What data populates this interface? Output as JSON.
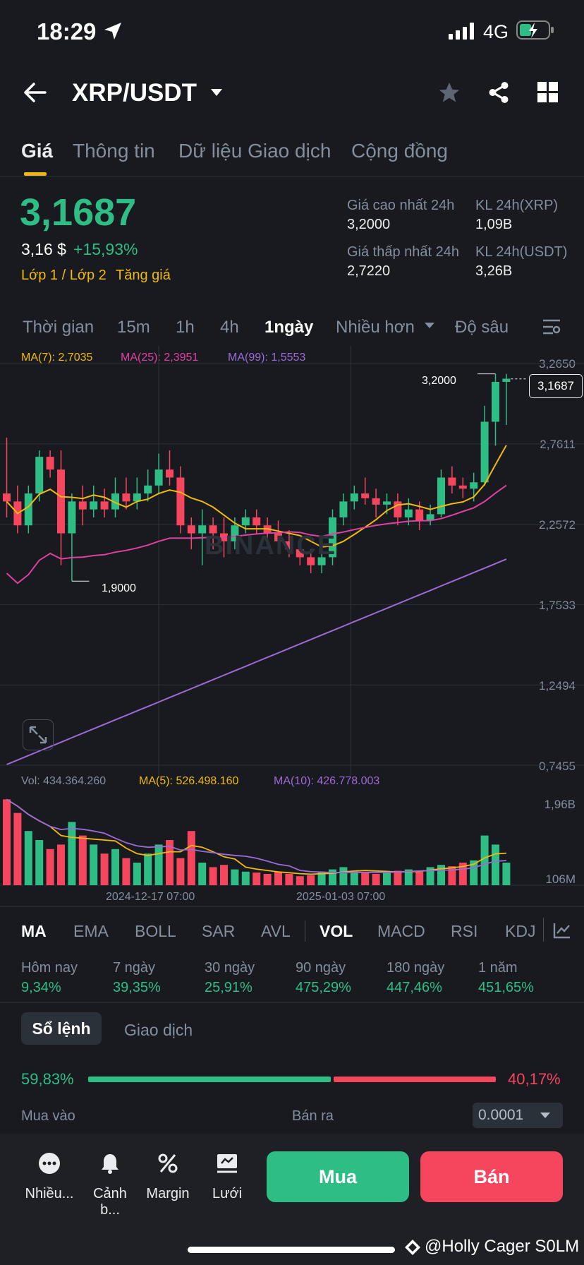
{
  "status": {
    "time": "18:29",
    "network": "4G"
  },
  "header": {
    "pair": "XRP/USDT"
  },
  "tabs": [
    "Giá",
    "Thông tin",
    "Dữ liệu Giao dịch",
    "Cộng đồng"
  ],
  "price": {
    "last": "3,1687",
    "usd": "3,16 $",
    "change": "+15,93%",
    "tag1": "Lớp 1 / Lớp 2",
    "tag2": "Tăng giá"
  },
  "stats": {
    "high_label": "Giá cao nhất 24h",
    "high": "3,2000",
    "low_label": "Giá thấp nhất 24h",
    "low": "2,7220",
    "vol_xrp_label": "KL 24h(XRP)",
    "vol_xrp": "1,09B",
    "vol_usdt_label": "KL 24h(USDT)",
    "vol_usdt": "3,26B"
  },
  "timeframes": [
    "Thời gian",
    "15m",
    "1h",
    "4h",
    "1ngày",
    "Nhiều hơn",
    "Độ sâu"
  ],
  "ma_legend": {
    "ma7": "MA(7): 2,7035",
    "ma25": "MA(25): 2,3951",
    "ma99": "MA(99): 1,5553"
  },
  "price_axis": [
    "3,2650",
    "2,7611",
    "2,2572",
    "1,7533",
    "1,2494",
    "0,7455"
  ],
  "chart_labels": {
    "high_mark": "3,2000",
    "low_mark": "1,9000",
    "current_tag": "3,1687",
    "watermark": "BINANCE"
  },
  "volume_legend": {
    "vol": "Vol: 434.364.260",
    "ma5": "MA(5): 526.498.160",
    "ma10": "MA(10): 426.778.003"
  },
  "volume_axis": [
    "1,96B",
    "106M"
  ],
  "dates": [
    "2024-12-17 07:00",
    "2025-01-03 07:00"
  ],
  "indicators": [
    "MA",
    "EMA",
    "BOLL",
    "SAR",
    "AVL",
    "VOL",
    "MACD",
    "RSI",
    "KDJ"
  ],
  "performance": [
    {
      "label": "Hôm nay",
      "value": "9,34%"
    },
    {
      "label": "7 ngày",
      "value": "39,35%"
    },
    {
      "label": "30 ngày",
      "value": "25,91%"
    },
    {
      "label": "90 ngày",
      "value": "475,29%"
    },
    {
      "label": "180 ngày",
      "value": "447,46%"
    },
    {
      "label": "1 năm",
      "value": "451,65%"
    }
  ],
  "orderbook": {
    "tab1": "Sổ lệnh",
    "tab2": "Giao dịch",
    "buy_pct": "59,83%",
    "sell_pct": "40,17%",
    "buy_ratio": 0.5983,
    "buy_label": "Mua vào",
    "sell_label": "Bán ra",
    "precision": "0.0001"
  },
  "bottom": {
    "more": "Nhiều...",
    "alert": "Cảnh b...",
    "margin": "Margin",
    "grid": "Lưới",
    "buy": "Mua",
    "sell": "Bán"
  },
  "watermark": "@Holly Cager S0LM",
  "colors": {
    "up": "#2ebd85",
    "down": "#f6465d",
    "ma7": "#f0b90b",
    "ma25": "#e040a0",
    "ma99": "#9b6bd6"
  },
  "candles": [
    [
      2.45,
      2.4,
      2.8,
      2.3
    ],
    [
      2.4,
      2.25,
      2.5,
      2.2
    ],
    [
      2.25,
      2.45,
      2.5,
      2.2
    ],
    [
      2.45,
      2.68,
      2.72,
      2.4
    ],
    [
      2.68,
      2.6,
      2.72,
      2.55
    ],
    [
      2.6,
      2.2,
      2.72,
      2.0
    ],
    [
      2.2,
      2.4,
      2.45,
      1.9
    ],
    [
      2.4,
      2.35,
      2.5,
      2.25
    ],
    [
      2.35,
      2.4,
      2.5,
      2.3
    ],
    [
      2.4,
      2.35,
      2.48,
      2.3
    ],
    [
      2.35,
      2.45,
      2.55,
      2.3
    ],
    [
      2.45,
      2.4,
      2.55,
      2.35
    ],
    [
      2.4,
      2.45,
      2.55,
      2.35
    ],
    [
      2.45,
      2.5,
      2.6,
      2.4
    ],
    [
      2.5,
      2.6,
      2.7,
      2.45
    ],
    [
      2.6,
      2.55,
      2.72,
      2.5
    ],
    [
      2.55,
      2.25,
      2.62,
      2.2
    ],
    [
      2.25,
      2.2,
      2.3,
      2.1
    ],
    [
      2.2,
      2.25,
      2.35,
      2.0
    ],
    [
      2.25,
      2.2,
      2.3,
      2.1
    ],
    [
      2.2,
      2.15,
      2.3,
      2.05
    ],
    [
      2.15,
      2.25,
      2.3,
      2.1
    ],
    [
      2.25,
      2.3,
      2.35,
      2.2
    ],
    [
      2.3,
      2.25,
      2.35,
      2.2
    ],
    [
      2.25,
      2.2,
      2.3,
      2.15
    ],
    [
      2.2,
      2.15,
      2.28,
      2.1
    ],
    [
      2.15,
      2.1,
      2.22,
      2.05
    ],
    [
      2.1,
      2.05,
      2.15,
      2.0
    ],
    [
      2.05,
      2.0,
      2.1,
      1.95
    ],
    [
      2.0,
      2.05,
      2.1,
      1.95
    ],
    [
      2.05,
      2.3,
      2.35,
      2.0
    ],
    [
      2.3,
      2.4,
      2.45,
      2.25
    ],
    [
      2.4,
      2.45,
      2.5,
      2.35
    ],
    [
      2.45,
      2.42,
      2.55,
      2.38
    ],
    [
      2.42,
      2.38,
      2.48,
      2.3
    ],
    [
      2.38,
      2.4,
      2.45,
      2.32
    ],
    [
      2.4,
      2.3,
      2.45,
      2.25
    ],
    [
      2.3,
      2.35,
      2.42,
      2.25
    ],
    [
      2.35,
      2.28,
      2.4,
      2.22
    ],
    [
      2.28,
      2.32,
      2.38,
      2.25
    ],
    [
      2.32,
      2.55,
      2.6,
      2.3
    ],
    [
      2.55,
      2.5,
      2.62,
      2.45
    ],
    [
      2.5,
      2.48,
      2.55,
      2.42
    ],
    [
      2.48,
      2.52,
      2.58,
      2.4
    ],
    [
      2.52,
      2.9,
      3.0,
      2.5
    ],
    [
      2.9,
      3.15,
      3.2,
      2.75
    ],
    [
      3.15,
      3.17,
      3.2,
      2.88
    ]
  ],
  "volumes": [
    1.9,
    1.6,
    1.2,
    1.0,
    0.8,
    0.9,
    1.4,
    1.1,
    0.9,
    0.7,
    0.8,
    0.6,
    0.5,
    0.7,
    0.9,
    1.0,
    0.6,
    1.2,
    0.5,
    0.4,
    0.45,
    0.35,
    0.3,
    0.28,
    0.25,
    0.3,
    0.25,
    0.2,
    0.22,
    0.3,
    0.35,
    0.4,
    0.3,
    0.28,
    0.25,
    0.3,
    0.32,
    0.35,
    0.3,
    0.4,
    0.45,
    0.42,
    0.5,
    0.55,
    1.1,
    0.9,
    0.5
  ]
}
